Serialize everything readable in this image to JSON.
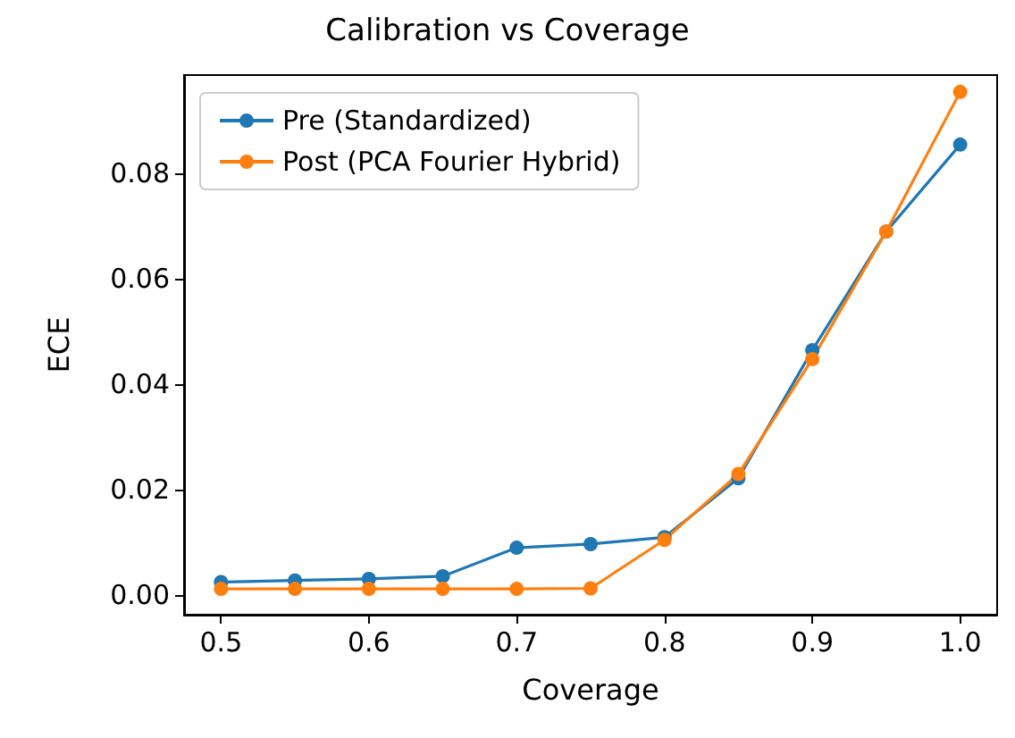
{
  "chart_data": {
    "type": "line",
    "title": "Calibration vs Coverage",
    "xlabel": "Coverage",
    "ylabel": "ECE",
    "x": [
      0.5,
      0.55,
      0.6,
      0.65,
      0.7,
      0.75,
      0.8,
      0.85,
      0.9,
      0.95,
      1.0
    ],
    "series": [
      {
        "name": "Pre (Standardized)",
        "color": "#1f77b4",
        "values": [
          0.0025,
          0.0028,
          0.0031,
          0.0036,
          0.009,
          0.0097,
          0.011,
          0.0222,
          0.0465,
          0.069,
          0.0855
        ]
      },
      {
        "name": "Post (PCA Fourier Hybrid)",
        "color": "#ff7f0e",
        "values": [
          0.0012,
          0.0012,
          0.0012,
          0.0012,
          0.0012,
          0.0013,
          0.0105,
          0.023,
          0.0448,
          0.069,
          0.0955
        ]
      }
    ],
    "xlim": [
      0.475,
      1.025
    ],
    "xticks": [
      {
        "value": 0.5,
        "label": "0.5"
      },
      {
        "value": 0.6,
        "label": "0.6"
      },
      {
        "value": 0.7,
        "label": "0.7"
      },
      {
        "value": 0.8,
        "label": "0.8"
      },
      {
        "value": 0.9,
        "label": "0.9"
      },
      {
        "value": 1.0,
        "label": "1.0"
      }
    ],
    "ylim": [
      -0.0037,
      0.0987
    ],
    "yticks": [
      {
        "value": 0,
        "label": "0.00"
      },
      {
        "value": 0.02,
        "label": "0.02"
      },
      {
        "value": 0.04,
        "label": "0.04"
      },
      {
        "value": 0.06,
        "label": "0.06"
      },
      {
        "value": 0.08,
        "label": "0.08"
      }
    ],
    "legend": "top left",
    "marker": "circle",
    "line_style": "solid",
    "grid": false
  }
}
